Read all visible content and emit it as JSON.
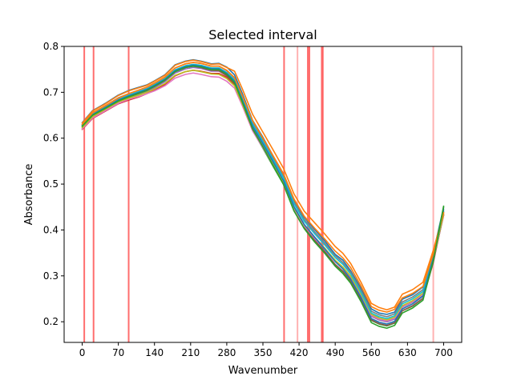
{
  "chart_data": {
    "type": "line",
    "title": "Selected interval",
    "xlabel": "Wavenumber",
    "ylabel": "Absorbance",
    "xlim": [
      -35,
      735
    ],
    "ylim": [
      0.155,
      0.8
    ],
    "xticks": [
      0,
      70,
      140,
      210,
      280,
      350,
      420,
      490,
      560,
      630,
      700
    ],
    "yticks": [
      0.2,
      0.3,
      0.4,
      0.5,
      0.6,
      0.7,
      0.8
    ],
    "grid": false,
    "selected_lines": [
      {
        "x": 4,
        "alpha": 0.85
      },
      {
        "x": 22,
        "alpha": 0.85
      },
      {
        "x": 90,
        "alpha": 0.85
      },
      {
        "x": 391,
        "alpha": 0.85
      },
      {
        "x": 417,
        "alpha": 0.45
      },
      {
        "x": 437,
        "alpha": 0.85
      },
      {
        "x": 440,
        "alpha": 0.85
      },
      {
        "x": 464,
        "alpha": 0.85
      },
      {
        "x": 466,
        "alpha": 0.85
      },
      {
        "x": 680,
        "alpha": 0.45
      }
    ],
    "selected_line_color": "#ff5555",
    "x": [
      0,
      20,
      45,
      70,
      90,
      110,
      125,
      140,
      160,
      180,
      200,
      215,
      230,
      250,
      265,
      280,
      295,
      310,
      330,
      350,
      370,
      390,
      410,
      430,
      450,
      470,
      490,
      505,
      520,
      540,
      560,
      575,
      590,
      605,
      620,
      640,
      660,
      680,
      700
    ],
    "base_curve": [
      0.628,
      0.652,
      0.668,
      0.684,
      0.693,
      0.701,
      0.707,
      0.716,
      0.729,
      0.748,
      0.757,
      0.76,
      0.758,
      0.752,
      0.752,
      0.742,
      0.726,
      0.686,
      0.63,
      0.592,
      0.552,
      0.512,
      0.457,
      0.418,
      0.391,
      0.366,
      0.339,
      0.324,
      0.303,
      0.263,
      0.218,
      0.21,
      0.206,
      0.212,
      0.238,
      0.249,
      0.265,
      0.34,
      0.438
    ],
    "series": [
      {
        "color": "#1f77b4",
        "values": [
          0.634,
          0.66,
          0.676,
          0.694,
          0.704,
          0.711,
          0.716,
          0.725,
          0.738,
          0.76,
          0.768,
          0.771,
          0.768,
          0.762,
          0.763,
          0.755,
          0.738,
          0.698,
          0.639,
          0.602,
          0.561,
          0.522,
          0.465,
          0.428,
          0.401,
          0.376,
          0.347,
          0.334,
          0.311,
          0.273,
          0.228,
          0.219,
          0.216,
          0.221,
          0.249,
          0.259,
          0.276,
          0.35,
          0.449
        ]
      },
      {
        "color": "#ff7f0e",
        "values": [
          0.633,
          0.659,
          0.675,
          0.693,
          0.703,
          0.71,
          0.715,
          0.724,
          0.737,
          0.759,
          0.767,
          0.77,
          0.767,
          0.761,
          0.762,
          0.754,
          0.746,
          0.708,
          0.652,
          0.613,
          0.574,
          0.534,
          0.479,
          0.441,
          0.416,
          0.391,
          0.364,
          0.349,
          0.327,
          0.286,
          0.24,
          0.231,
          0.226,
          0.232,
          0.26,
          0.27,
          0.286,
          0.356,
          0.437
        ]
      },
      {
        "color": "#2ca02c",
        "values": [
          0.625,
          0.648,
          0.663,
          0.679,
          0.688,
          0.696,
          0.702,
          0.711,
          0.724,
          0.745,
          0.754,
          0.757,
          0.754,
          0.749,
          0.748,
          0.738,
          0.719,
          0.677,
          0.617,
          0.578,
          0.538,
          0.499,
          0.442,
          0.404,
          0.375,
          0.351,
          0.324,
          0.309,
          0.288,
          0.248,
          0.203,
          0.195,
          0.191,
          0.197,
          0.224,
          0.234,
          0.251,
          0.335,
          0.452
        ]
      },
      {
        "color": "#d62728",
        "values": [
          0.619,
          0.643,
          0.659,
          0.675,
          0.683,
          0.69,
          0.697,
          0.705,
          0.717,
          0.736,
          0.745,
          0.748,
          0.746,
          0.741,
          0.741,
          0.733,
          0.717,
          0.677,
          0.621,
          0.583,
          0.544,
          0.503,
          0.449,
          0.41,
          0.384,
          0.359,
          0.333,
          0.318,
          0.297,
          0.257,
          0.212,
          0.204,
          0.2,
          0.206,
          0.232,
          0.243,
          0.259,
          0.334,
          0.432
        ]
      },
      {
        "color": "#9467bd",
        "values": [
          0.622,
          0.646,
          0.662,
          0.678,
          0.687,
          0.695,
          0.701,
          0.71,
          0.723,
          0.742,
          0.751,
          0.754,
          0.752,
          0.746,
          0.746,
          0.736,
          0.72,
          0.68,
          0.624,
          0.586,
          0.546,
          0.506,
          0.451,
          0.412,
          0.385,
          0.36,
          0.333,
          0.318,
          0.297,
          0.257,
          0.212,
          0.204,
          0.2,
          0.206,
          0.232,
          0.243,
          0.259,
          0.334,
          0.432
        ]
      },
      {
        "color": "#8c564b",
        "values": [
          0.628,
          0.651,
          0.666,
          0.682,
          0.691,
          0.699,
          0.705,
          0.714,
          0.727,
          0.746,
          0.754,
          0.757,
          0.754,
          0.748,
          0.747,
          0.736,
          0.719,
          0.678,
          0.621,
          0.582,
          0.541,
          0.501,
          0.445,
          0.406,
          0.378,
          0.353,
          0.325,
          0.31,
          0.289,
          0.249,
          0.204,
          0.196,
          0.192,
          0.198,
          0.224,
          0.235,
          0.251,
          0.329,
          0.434
        ]
      },
      {
        "color": "#e377c2",
        "values": [
          0.62,
          0.644,
          0.66,
          0.676,
          0.685,
          0.691,
          0.697,
          0.703,
          0.714,
          0.731,
          0.739,
          0.742,
          0.739,
          0.734,
          0.733,
          0.724,
          0.709,
          0.671,
          0.616,
          0.579,
          0.54,
          0.501,
          0.447,
          0.409,
          0.382,
          0.358,
          0.332,
          0.317,
          0.297,
          0.258,
          0.214,
          0.206,
          0.202,
          0.208,
          0.233,
          0.244,
          0.26,
          0.334,
          0.433
        ]
      },
      {
        "color": "#7f7f7f",
        "values": [
          0.63,
          0.655,
          0.671,
          0.688,
          0.697,
          0.705,
          0.711,
          0.72,
          0.733,
          0.753,
          0.762,
          0.765,
          0.763,
          0.757,
          0.757,
          0.747,
          0.731,
          0.691,
          0.635,
          0.597,
          0.557,
          0.517,
          0.462,
          0.423,
          0.396,
          0.371,
          0.344,
          0.329,
          0.308,
          0.268,
          0.223,
          0.215,
          0.211,
          0.217,
          0.243,
          0.254,
          0.27,
          0.344,
          0.441
        ]
      },
      {
        "color": "#bcbd22",
        "values": [
          0.623,
          0.647,
          0.663,
          0.679,
          0.687,
          0.694,
          0.7,
          0.707,
          0.719,
          0.737,
          0.745,
          0.748,
          0.745,
          0.74,
          0.739,
          0.73,
          0.714,
          0.675,
          0.62,
          0.582,
          0.543,
          0.503,
          0.449,
          0.411,
          0.384,
          0.36,
          0.334,
          0.319,
          0.299,
          0.26,
          0.216,
          0.208,
          0.204,
          0.21,
          0.235,
          0.246,
          0.262,
          0.336,
          0.434
        ]
      },
      {
        "color": "#17becf",
        "values": [
          0.629,
          0.653,
          0.669,
          0.685,
          0.694,
          0.702,
          0.708,
          0.717,
          0.73,
          0.749,
          0.758,
          0.761,
          0.759,
          0.753,
          0.753,
          0.743,
          0.727,
          0.687,
          0.631,
          0.593,
          0.553,
          0.513,
          0.458,
          0.419,
          0.392,
          0.367,
          0.34,
          0.325,
          0.304,
          0.264,
          0.219,
          0.211,
          0.207,
          0.213,
          0.239,
          0.25,
          0.266,
          0.341,
          0.439
        ]
      },
      {
        "color": "#1f77b4",
        "values": [
          0.627,
          0.651,
          0.667,
          0.683,
          0.692,
          0.7,
          0.706,
          0.715,
          0.728,
          0.747,
          0.756,
          0.759,
          0.757,
          0.751,
          0.751,
          0.741,
          0.724,
          0.683,
          0.626,
          0.588,
          0.548,
          0.507,
          0.451,
          0.412,
          0.384,
          0.358,
          0.331,
          0.315,
          0.293,
          0.253,
          0.207,
          0.199,
          0.195,
          0.201,
          0.228,
          0.239,
          0.256,
          0.338,
          0.445
        ]
      },
      {
        "color": "#ff7f0e",
        "values": [
          0.63,
          0.655,
          0.671,
          0.687,
          0.697,
          0.705,
          0.711,
          0.72,
          0.733,
          0.753,
          0.762,
          0.765,
          0.763,
          0.757,
          0.757,
          0.748,
          0.732,
          0.693,
          0.638,
          0.6,
          0.561,
          0.522,
          0.468,
          0.43,
          0.404,
          0.38,
          0.354,
          0.339,
          0.318,
          0.278,
          0.233,
          0.225,
          0.221,
          0.227,
          0.252,
          0.262,
          0.277,
          0.348,
          0.438
        ]
      },
      {
        "color": "#2ca02c",
        "values": [
          0.626,
          0.65,
          0.665,
          0.681,
          0.69,
          0.698,
          0.704,
          0.713,
          0.726,
          0.745,
          0.754,
          0.757,
          0.755,
          0.749,
          0.749,
          0.739,
          0.721,
          0.679,
          0.62,
          0.581,
          0.54,
          0.499,
          0.442,
          0.403,
          0.374,
          0.349,
          0.321,
          0.305,
          0.284,
          0.244,
          0.198,
          0.19,
          0.186,
          0.192,
          0.219,
          0.23,
          0.247,
          0.333,
          0.451
        ]
      }
    ]
  }
}
